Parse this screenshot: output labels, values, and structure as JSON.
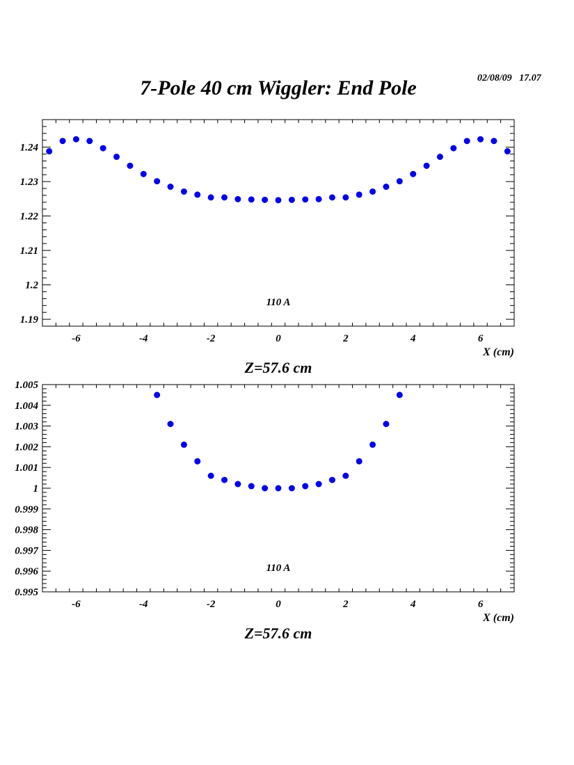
{
  "header": {
    "title": "7-Pole 40 cm Wiggler: End Pole",
    "timestamp": "02/08/09   17.07"
  },
  "colors": {
    "marker": "#0000ee",
    "axis": "#000000"
  },
  "chart_data": [
    {
      "type": "scatter",
      "xlabel": "X (cm)",
      "caption": "Z=57.6 cm",
      "annotation": "110 A",
      "xlim": [
        -7,
        7
      ],
      "ylim": [
        1.188,
        1.248
      ],
      "x_ticks": [
        -6,
        -4,
        -2,
        0,
        2,
        4,
        6
      ],
      "x_tick_labels": [
        "-6",
        "-4",
        "-2",
        "0",
        "2",
        "4",
        "6"
      ],
      "y_ticks": [
        1.19,
        1.2,
        1.21,
        1.22,
        1.23,
        1.24
      ],
      "y_tick_labels": [
        "1.19",
        "1.2",
        "1.21",
        "1.22",
        "1.23",
        "1.24"
      ],
      "series": [
        {
          "x": [
            -6.8,
            -6.4,
            -6.0,
            -5.6,
            -5.2,
            -4.8,
            -4.4,
            -4.0,
            -3.6,
            -3.2,
            -2.8,
            -2.4,
            -2.0,
            -1.6,
            -1.2,
            -0.8,
            -0.4,
            0.0,
            0.4,
            0.8,
            1.2,
            1.6,
            2.0,
            2.4,
            2.8,
            3.2,
            3.6,
            4.0,
            4.4,
            4.8,
            5.2,
            5.6,
            6.0,
            6.4,
            6.8
          ],
          "y": [
            1.2388,
            1.2418,
            1.2423,
            1.2418,
            1.2397,
            1.2372,
            1.2346,
            1.2322,
            1.2301,
            1.2285,
            1.2271,
            1.2262,
            1.2254,
            1.2254,
            1.2249,
            1.2248,
            1.2247,
            1.2246,
            1.2247,
            1.2248,
            1.2249,
            1.2254,
            1.2254,
            1.2262,
            1.2271,
            1.2285,
            1.2301,
            1.2322,
            1.2346,
            1.2372,
            1.2397,
            1.2418,
            1.2423,
            1.2418,
            1.2388
          ]
        }
      ]
    },
    {
      "type": "scatter",
      "xlabel": "X (cm)",
      "caption": "Z=57.6 cm",
      "annotation": "110 A",
      "xlim": [
        -7,
        7
      ],
      "ylim": [
        0.995,
        1.005
      ],
      "x_ticks": [
        -6,
        -4,
        -2,
        0,
        2,
        4,
        6
      ],
      "x_tick_labels": [
        "-6",
        "-4",
        "-2",
        "0",
        "2",
        "4",
        "6"
      ],
      "y_ticks": [
        0.995,
        0.996,
        0.997,
        0.998,
        0.999,
        1.0,
        1.001,
        1.002,
        1.003,
        1.004,
        1.005
      ],
      "y_tick_labels": [
        "0.995",
        "0.996",
        "0.997",
        "0.998",
        "0.999",
        "1",
        "1.001",
        "1.002",
        "1.003",
        "1.004",
        "1.005"
      ],
      "series": [
        {
          "x": [
            -3.6,
            -3.2,
            -2.8,
            -2.4,
            -2.0,
            -1.6,
            -1.2,
            -0.8,
            -0.4,
            0.0,
            0.4,
            0.8,
            1.2,
            1.6,
            2.0,
            2.4,
            2.8,
            3.2,
            3.6
          ],
          "y": [
            1.0045,
            1.0031,
            1.0021,
            1.0013,
            1.0006,
            1.0004,
            1.0002,
            1.0001,
            1.0,
            1.0,
            1.0,
            1.0001,
            1.0002,
            1.0004,
            1.0006,
            1.0013,
            1.0021,
            1.0031,
            1.0045
          ]
        }
      ]
    }
  ]
}
